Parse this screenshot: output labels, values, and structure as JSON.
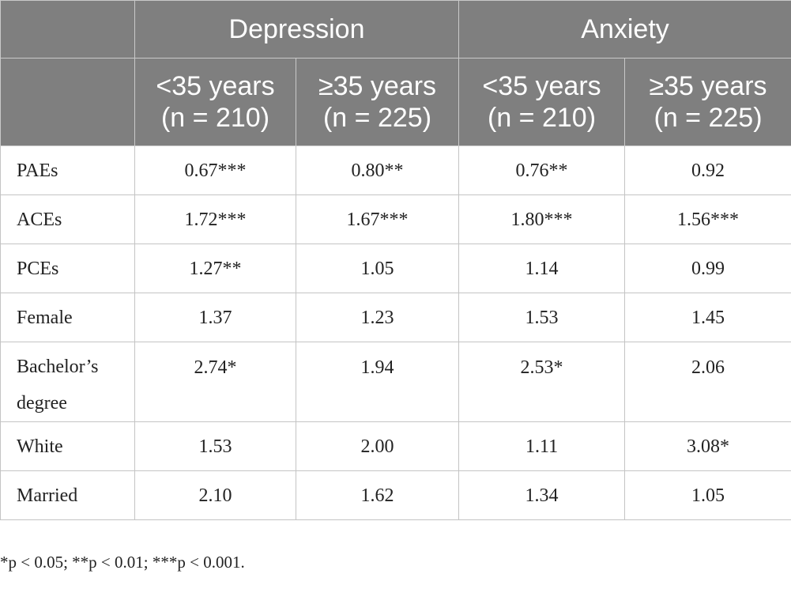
{
  "table": {
    "groups": [
      {
        "label": "Depression",
        "subs": [
          {
            "age": "<35 years",
            "n": "(n = 210)"
          },
          {
            "age": "≥35 years",
            "n": "(n = 225)"
          }
        ]
      },
      {
        "label": "Anxiety",
        "subs": [
          {
            "age": "<35 years",
            "n": "(n = 210)"
          },
          {
            "age": "≥35 years",
            "n": "(n = 225)"
          }
        ]
      }
    ],
    "rows": [
      {
        "label": "PAEs",
        "values": [
          "0.67***",
          "0.80**",
          "0.76**",
          "0.92"
        ]
      },
      {
        "label": "ACEs",
        "values": [
          "1.72***",
          "1.67***",
          "1.80***",
          "1.56***"
        ]
      },
      {
        "label": "PCEs",
        "values": [
          "1.27**",
          "1.05",
          "1.14",
          "0.99"
        ]
      },
      {
        "label": "Female",
        "values": [
          "1.37",
          "1.23",
          "1.53",
          "1.45"
        ]
      },
      {
        "label": "Bachelor’s degree",
        "values": [
          "2.74*",
          "1.94",
          "2.53*",
          "2.06"
        ]
      },
      {
        "label": "White",
        "values": [
          "1.53",
          "2.00",
          "1.11",
          "3.08*"
        ]
      },
      {
        "label": "Married",
        "values": [
          "2.10",
          "1.62",
          "1.34",
          "1.05"
        ]
      }
    ]
  },
  "footnote": "*p < 0.05; **p < 0.01; ***p < 0.001.",
  "colors": {
    "header_bg": "#7f7f7f",
    "header_text": "#ffffff",
    "grid": "#c4c4c4"
  }
}
